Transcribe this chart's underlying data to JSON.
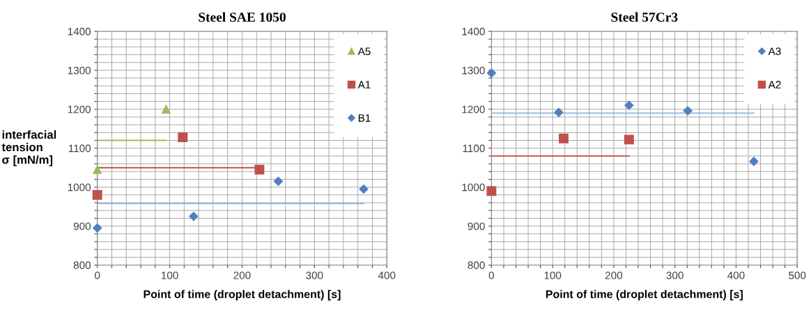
{
  "chart_data": [
    {
      "type": "scatter",
      "title": "Steel SAE 1050",
      "xlabel": "Point of time (droplet detachment) [s]",
      "ylabel": "interfacial\ntension\nσ [mN/m]",
      "xlim": [
        0,
        400
      ],
      "ylim": [
        800,
        1400
      ],
      "xticks": [
        0,
        {
          "value": 20,
          "label": null
        },
        {
          "value": 40,
          "label": null
        },
        {
          "value": 60,
          "label": null
        },
        {
          "value": 80,
          "label": null
        },
        100,
        {
          "value": 120,
          "label": null
        },
        {
          "value": 140,
          "label": null
        },
        {
          "value": 160,
          "label": null
        },
        {
          "value": 180,
          "label": null
        },
        200,
        {
          "value": 220,
          "label": null
        },
        {
          "value": 240,
          "label": null
        },
        {
          "value": 260,
          "label": null
        },
        {
          "value": 280,
          "label": null
        },
        300,
        {
          "value": 320,
          "label": null
        },
        {
          "value": 340,
          "label": null
        },
        {
          "value": 360,
          "label": null
        },
        {
          "value": 380,
          "label": null
        },
        400
      ],
      "yticks": [
        800,
        {
          "value": 820,
          "label": null
        },
        {
          "value": 840,
          "label": null
        },
        {
          "value": 860,
          "label": null
        },
        {
          "value": 880,
          "label": null
        },
        900,
        {
          "value": 920,
          "label": null
        },
        {
          "value": 940,
          "label": null
        },
        {
          "value": 960,
          "label": null
        },
        {
          "value": 980,
          "label": null
        },
        1000,
        {
          "value": 1020,
          "label": null
        },
        {
          "value": 1040,
          "label": null
        },
        {
          "value": 1060,
          "label": null
        },
        {
          "value": 1080,
          "label": null
        },
        1100,
        {
          "value": 1120,
          "label": null
        },
        {
          "value": 1140,
          "label": null
        },
        {
          "value": 1160,
          "label": null
        },
        {
          "value": 1180,
          "label": null
        },
        1200,
        {
          "value": 1220,
          "label": null
        },
        {
          "value": 1240,
          "label": null
        },
        {
          "value": 1260,
          "label": null
        },
        {
          "value": 1280,
          "label": null
        },
        1300,
        {
          "value": 1320,
          "label": null
        },
        {
          "value": 1340,
          "label": null
        },
        {
          "value": 1360,
          "label": null
        },
        {
          "value": 1380,
          "label": null
        },
        1400
      ],
      "grid": true,
      "legend": "top right",
      "series": [
        {
          "name": "A5",
          "marker": "triangle",
          "color": "#9bbb59",
          "x": [
            0,
            95
          ],
          "values": [
            1045,
            1200
          ]
        },
        {
          "name": "A1",
          "marker": "square",
          "color": "#c0504d",
          "x": [
            0,
            118,
            224
          ],
          "values": [
            980,
            1128,
            1045
          ]
        },
        {
          "name": "B1",
          "marker": "diamond",
          "color": "#4f81bd",
          "x": [
            0,
            133,
            250,
            368
          ],
          "values": [
            895,
            925,
            1015,
            995
          ]
        },
        {
          "type": "line",
          "color": "#9bbb59",
          "x": [
            0,
            95
          ],
          "values": [
            1120,
            1120
          ]
        },
        {
          "type": "line",
          "color": "#c0504d",
          "x": [
            0,
            224
          ],
          "values": [
            1050,
            1050
          ]
        },
        {
          "type": "line",
          "color": "#8db3e2",
          "x": [
            0,
            368
          ],
          "values": [
            958,
            958
          ]
        }
      ]
    },
    {
      "type": "scatter",
      "title": "Steel 57Cr3",
      "xlabel": "Point of time (droplet detachment) [s]",
      "xlim": [
        0,
        500
      ],
      "ylim": [
        800,
        1400
      ],
      "xticks": [
        0,
        {
          "value": 20,
          "label": null
        },
        {
          "value": 40,
          "label": null
        },
        {
          "value": 60,
          "label": null
        },
        {
          "value": 80,
          "label": null
        },
        100,
        {
          "value": 120,
          "label": null
        },
        {
          "value": 140,
          "label": null
        },
        {
          "value": 160,
          "label": null
        },
        {
          "value": 180,
          "label": null
        },
        200,
        {
          "value": 220,
          "label": null
        },
        {
          "value": 240,
          "label": null
        },
        {
          "value": 260,
          "label": null
        },
        {
          "value": 280,
          "label": null
        },
        300,
        {
          "value": 320,
          "label": null
        },
        {
          "value": 340,
          "label": null
        },
        {
          "value": 360,
          "label": null
        },
        {
          "value": 380,
          "label": null
        },
        400,
        {
          "value": 420,
          "label": null
        },
        {
          "value": 440,
          "label": null
        },
        {
          "value": 460,
          "label": null
        },
        {
          "value": 480,
          "label": null
        },
        500
      ],
      "yticks": [
        800,
        {
          "value": 820,
          "label": null
        },
        {
          "value": 840,
          "label": null
        },
        {
          "value": 860,
          "label": null
        },
        {
          "value": 880,
          "label": null
        },
        900,
        {
          "value": 920,
          "label": null
        },
        {
          "value": 940,
          "label": null
        },
        {
          "value": 960,
          "label": null
        },
        {
          "value": 980,
          "label": null
        },
        1000,
        {
          "value": 1020,
          "label": null
        },
        {
          "value": 1040,
          "label": null
        },
        {
          "value": 1060,
          "label": null
        },
        {
          "value": 1080,
          "label": null
        },
        1100,
        {
          "value": 1120,
          "label": null
        },
        {
          "value": 1140,
          "label": null
        },
        {
          "value": 1160,
          "label": null
        },
        {
          "value": 1180,
          "label": null
        },
        1200,
        {
          "value": 1220,
          "label": null
        },
        {
          "value": 1240,
          "label": null
        },
        {
          "value": 1260,
          "label": null
        },
        {
          "value": 1280,
          "label": null
        },
        1300,
        {
          "value": 1320,
          "label": null
        },
        {
          "value": 1340,
          "label": null
        },
        {
          "value": 1360,
          "label": null
        },
        {
          "value": 1380,
          "label": null
        },
        1400
      ],
      "grid": true,
      "legend": "top right",
      "series": [
        {
          "name": "A3",
          "marker": "diamond",
          "color": "#4f81bd",
          "x": [
            0,
            110,
            225,
            321,
            429
          ],
          "values": [
            1293,
            1192,
            1210,
            1196,
            1066
          ]
        },
        {
          "name": "A2",
          "marker": "square",
          "color": "#c0504d",
          "x": [
            0,
            118,
            225
          ],
          "values": [
            990,
            1125,
            1122
          ]
        },
        {
          "type": "line",
          "color": "#8db3e2",
          "x": [
            0,
            429
          ],
          "values": [
            1190,
            1190
          ]
        },
        {
          "type": "line",
          "color": "#c0504d",
          "x": [
            0,
            225
          ],
          "values": [
            1080,
            1080
          ]
        }
      ]
    }
  ]
}
